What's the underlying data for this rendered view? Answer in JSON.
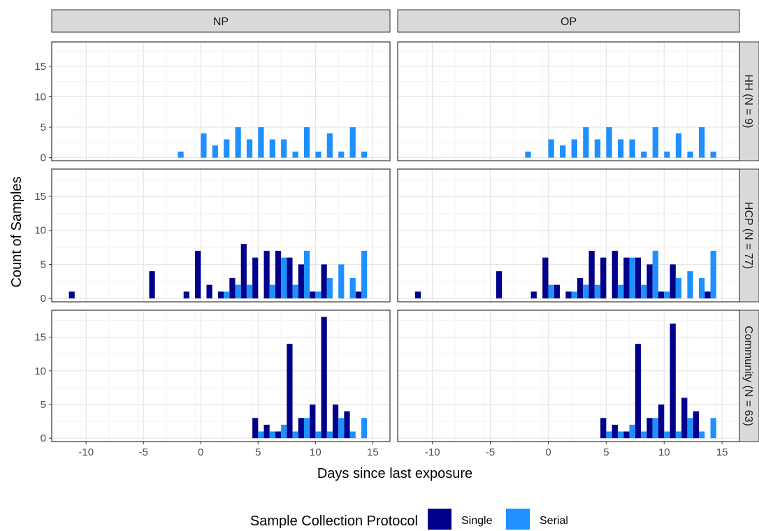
{
  "chart_data": {
    "type": "bar",
    "xlabel": "Days since last exposure",
    "ylabel": "Count of Samples",
    "xlim": [
      -13,
      16.5
    ],
    "ylim": [
      -0.5,
      19
    ],
    "x_ticks": [
      -10,
      -5,
      0,
      5,
      10,
      15
    ],
    "y_ticks": [
      0,
      5,
      10,
      15
    ],
    "grid": true,
    "legend": {
      "title": "Sample Collection Protocol",
      "position": "bottom",
      "entries": [
        {
          "name": "Single",
          "color": "#00008B"
        },
        {
          "name": "Serial",
          "color": "#1E90FF"
        }
      ]
    },
    "columns": [
      "NP",
      "OP"
    ],
    "rows": [
      "HH (N = 9)",
      "HCP (N = 77)",
      "Community (N = 63)"
    ],
    "panels": [
      {
        "row": 0,
        "col": 0,
        "series": [
          {
            "name": "Single",
            "x": [],
            "values": []
          },
          {
            "name": "Serial",
            "x": [
              -2,
              0,
              1,
              2,
              3,
              4,
              5,
              6,
              7,
              8,
              9,
              10,
              11,
              12,
              13,
              14
            ],
            "values": [
              1,
              4,
              2,
              3,
              5,
              3,
              5,
              3,
              3,
              1,
              5,
              1,
              4,
              1,
              5,
              1
            ]
          }
        ]
      },
      {
        "row": 0,
        "col": 1,
        "series": [
          {
            "name": "Single",
            "x": [],
            "values": []
          },
          {
            "name": "Serial",
            "x": [
              -2,
              0,
              1,
              2,
              3,
              4,
              5,
              6,
              7,
              8,
              9,
              10,
              11,
              12,
              13,
              14
            ],
            "values": [
              1,
              3,
              2,
              3,
              5,
              3,
              5,
              3,
              3,
              1,
              5,
              1,
              4,
              1,
              5,
              1
            ]
          }
        ]
      },
      {
        "row": 1,
        "col": 0,
        "series": [
          {
            "name": "Single",
            "x": [
              -11,
              -4,
              -1,
              0,
              1,
              2,
              3,
              4,
              5,
              6,
              7,
              8,
              9,
              10,
              11,
              14
            ],
            "values": [
              1,
              4,
              1,
              7,
              2,
              1,
              3,
              8,
              6,
              7,
              7,
              6,
              5,
              1,
              5,
              1
            ]
          },
          {
            "name": "Serial",
            "x": [
              2,
              3,
              4,
              6,
              7,
              8,
              9,
              10,
              11,
              12,
              13,
              14
            ],
            "values": [
              1,
              2,
              2,
              2,
              6,
              2,
              7,
              1,
              3,
              5,
              3,
              7
            ]
          }
        ]
      },
      {
        "row": 1,
        "col": 1,
        "series": [
          {
            "name": "Single",
            "x": [
              -11,
              -4,
              -1,
              0,
              1,
              2,
              3,
              4,
              5,
              6,
              7,
              8,
              9,
              10,
              11,
              14
            ],
            "values": [
              1,
              4,
              1,
              6,
              2,
              1,
              3,
              7,
              6,
              7,
              6,
              6,
              5,
              1,
              5,
              1
            ]
          },
          {
            "name": "Serial",
            "x": [
              0,
              2,
              3,
              4,
              6,
              7,
              8,
              9,
              10,
              11,
              12,
              13,
              14
            ],
            "values": [
              2,
              1,
              2,
              2,
              2,
              6,
              2,
              7,
              1,
              3,
              4,
              3,
              7
            ]
          }
        ]
      },
      {
        "row": 2,
        "col": 0,
        "series": [
          {
            "name": "Single",
            "x": [
              5,
              6,
              7,
              8,
              9,
              10,
              11,
              12,
              13
            ],
            "values": [
              3,
              2,
              1,
              14,
              3,
              5,
              18,
              5,
              4
            ]
          },
          {
            "name": "Serial",
            "x": [
              5,
              6,
              7,
              8,
              9,
              10,
              11,
              12,
              13,
              14
            ],
            "values": [
              1,
              1,
              2,
              1,
              3,
              1,
              1,
              3,
              1,
              3
            ]
          }
        ]
      },
      {
        "row": 2,
        "col": 1,
        "series": [
          {
            "name": "Single",
            "x": [
              5,
              6,
              7,
              8,
              9,
              10,
              11,
              12,
              13
            ],
            "values": [
              3,
              2,
              1,
              14,
              3,
              5,
              17,
              6,
              4
            ]
          },
          {
            "name": "Serial",
            "x": [
              5,
              6,
              7,
              8,
              9,
              10,
              11,
              12,
              13,
              14
            ],
            "values": [
              1,
              1,
              2,
              1,
              3,
              1,
              1,
              3,
              1,
              3
            ]
          }
        ]
      }
    ]
  }
}
